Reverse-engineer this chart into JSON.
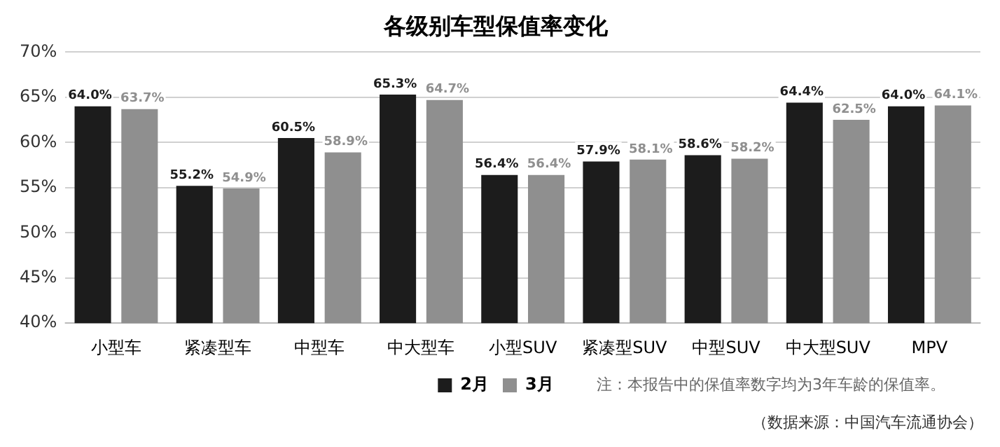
{
  "chart_data": {
    "type": "bar",
    "title": "各级别车型保值率变化",
    "categories": [
      "小型车",
      "紧凑型车",
      "中型车",
      "中大型车",
      "小型SUV",
      "紧凑型SUV",
      "中型SUV",
      "中大型SUV",
      "MPV"
    ],
    "series": [
      {
        "name": "2月",
        "color": "#1c1c1c",
        "values": [
          64.0,
          55.2,
          60.5,
          65.3,
          56.4,
          57.9,
          58.6,
          64.4,
          64.0
        ],
        "value_labels": [
          "64.0%",
          "55.2%",
          "60.5%",
          "65.3%",
          "56.4%",
          "57.9%",
          "58.6%",
          "64.4%",
          "64.0%"
        ]
      },
      {
        "name": "3月",
        "color": "#8f8f8f",
        "values": [
          63.7,
          54.9,
          58.9,
          64.7,
          56.4,
          58.1,
          58.2,
          62.5,
          64.1
        ],
        "value_labels": [
          "63.7%",
          "54.9%",
          "58.9%",
          "64.7%",
          "56.4%",
          "58.1%",
          "58.2%",
          "62.5%",
          "64.1%"
        ]
      }
    ],
    "ylim": [
      40,
      70
    ],
    "yticks": [
      {
        "value": 40,
        "label": "40%"
      },
      {
        "value": 45,
        "label": "45%"
      },
      {
        "value": 50,
        "label": "50%"
      },
      {
        "value": 55,
        "label": "55%"
      },
      {
        "value": 60,
        "label": "60%"
      },
      {
        "value": 65,
        "label": "65%"
      },
      {
        "value": 70,
        "label": "70%"
      }
    ],
    "grid": "y",
    "legend": "bottom",
    "annotations": [
      "注：本报告中的保值率数字均为3年车龄的保值率。",
      "（数据来源：中国汽车流通协会）"
    ]
  }
}
